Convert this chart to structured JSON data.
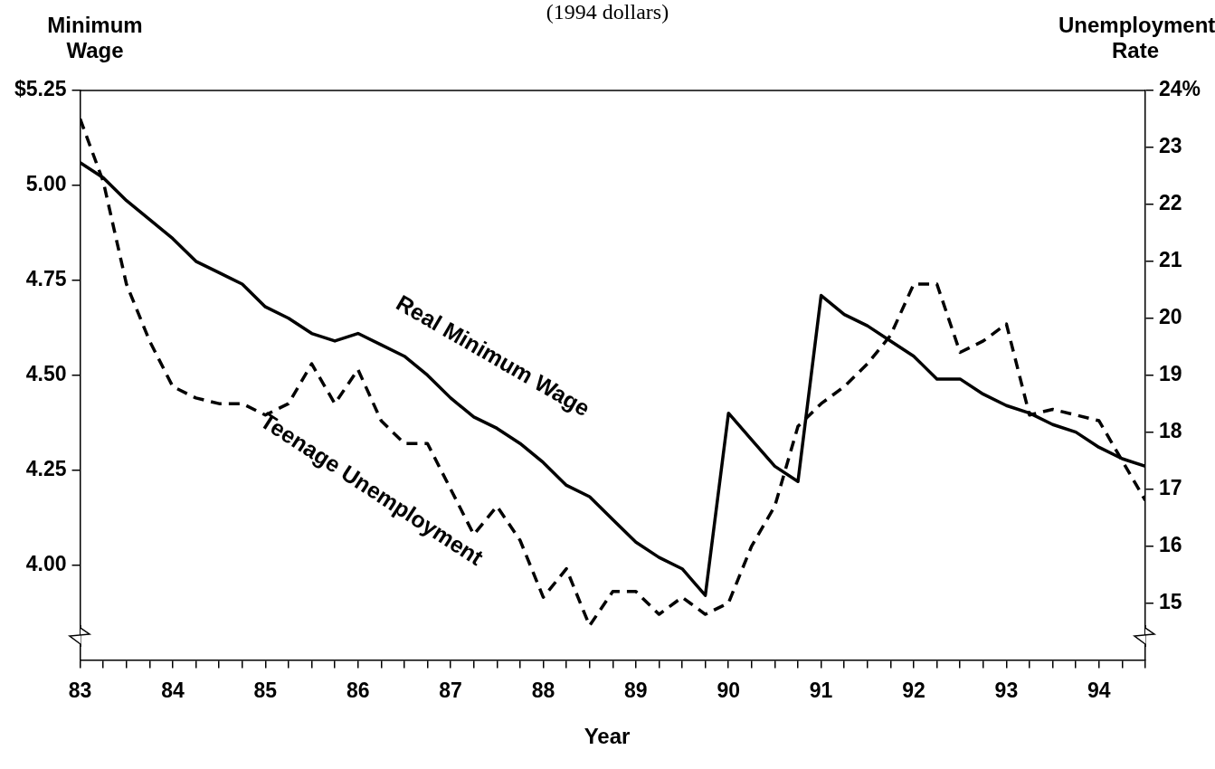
{
  "chart_data": {
    "type": "line",
    "title": "(1994 dollars)",
    "xlabel": "Year",
    "ylabel": "Minimum Wage",
    "y2label": "Unemployment Rate",
    "x": [
      83,
      83.25,
      83.5,
      83.75,
      84,
      84.25,
      84.5,
      84.75,
      85,
      85.25,
      85.5,
      85.75,
      86,
      86.25,
      86.5,
      86.75,
      87,
      87.25,
      87.5,
      87.75,
      88,
      88.25,
      88.5,
      88.75,
      89,
      89.25,
      89.5,
      89.75,
      90,
      90.25,
      90.5,
      90.75,
      91,
      91.25,
      91.5,
      91.75,
      92,
      92.25,
      92.5,
      92.75,
      93,
      93.25,
      93.5,
      93.75,
      94,
      94.25,
      94.5
    ],
    "series": [
      {
        "name": "Real Minimum Wage",
        "color": "#000000",
        "line_style": "solid",
        "values": [
          5.06,
          5.02,
          4.96,
          4.91,
          4.86,
          4.8,
          4.77,
          4.74,
          4.68,
          4.65,
          4.61,
          4.59,
          4.61,
          4.58,
          4.55,
          4.5,
          4.44,
          4.39,
          4.36,
          4.32,
          4.27,
          4.21,
          4.18,
          4.12,
          4.06,
          4.02,
          3.99,
          3.92,
          4.4,
          4.33,
          4.26,
          4.22,
          4.71,
          4.66,
          4.63,
          4.59,
          4.55,
          4.49,
          4.49,
          4.45,
          4.42,
          4.4,
          4.37,
          4.35,
          4.31,
          4.28,
          4.26
        ]
      },
      {
        "name": "Teenage Unemployment",
        "color": "#000000",
        "line_style": "dashed",
        "axis": "y2",
        "values": [
          23.5,
          22.4,
          20.6,
          19.6,
          18.8,
          18.6,
          18.5,
          18.5,
          18.3,
          18.5,
          19.2,
          18.5,
          19.1,
          18.2,
          17.8,
          17.8,
          17.0,
          16.2,
          16.7,
          16.1,
          15.1,
          15.6,
          14.6,
          15.2,
          15.2,
          14.8,
          15.1,
          14.8,
          15.0,
          16.0,
          16.7,
          18.1,
          18.5,
          18.8,
          19.2,
          19.7,
          20.6,
          20.6,
          19.4,
          19.6,
          19.9,
          18.3,
          18.4,
          18.3,
          18.2,
          17.5,
          16.8
        ]
      }
    ],
    "xlim": [
      83,
      94.5
    ],
    "xticks": [
      83,
      {
        "value": 83.25,
        "label": null
      },
      {
        "value": 83.5,
        "label": null
      },
      {
        "value": 83.75,
        "label": null
      },
      84,
      {
        "value": 84.25,
        "label": null
      },
      {
        "value": 84.5,
        "label": null
      },
      {
        "value": 84.75,
        "label": null
      },
      85,
      {
        "value": 85.25,
        "label": null
      },
      {
        "value": 85.5,
        "label": null
      },
      {
        "value": 85.75,
        "label": null
      },
      86,
      {
        "value": 86.25,
        "label": null
      },
      {
        "value": 86.5,
        "label": null
      },
      {
        "value": 86.75,
        "label": null
      },
      87,
      {
        "value": 87.25,
        "label": null
      },
      {
        "value": 87.5,
        "label": null
      },
      {
        "value": 87.75,
        "label": null
      },
      88,
      {
        "value": 88.25,
        "label": null
      },
      {
        "value": 88.5,
        "label": null
      },
      {
        "value": 88.75,
        "label": null
      },
      89,
      {
        "value": 89.25,
        "label": null
      },
      {
        "value": 89.5,
        "label": null
      },
      {
        "value": 89.75,
        "label": null
      },
      90,
      {
        "value": 90.25,
        "label": null
      },
      {
        "value": 90.5,
        "label": null
      },
      {
        "value": 90.75,
        "label": null
      },
      91,
      {
        "value": 91.25,
        "label": null
      },
      {
        "value": 91.5,
        "label": null
      },
      {
        "value": 91.75,
        "label": null
      },
      92,
      {
        "value": 92.25,
        "label": null
      },
      {
        "value": 92.5,
        "label": null
      },
      {
        "value": 92.75,
        "label": null
      },
      93,
      {
        "value": 93.25,
        "label": null
      },
      {
        "value": 93.5,
        "label": null
      },
      {
        "value": 93.75,
        "label": null
      },
      94,
      {
        "value": 94.25,
        "label": null
      },
      {
        "value": 94.5,
        "label": null
      }
    ],
    "ylim": [
      3.75,
      5.25
    ],
    "yticks": [
      {
        "value": 4.0,
        "label": "4.00"
      },
      {
        "value": 4.25,
        "label": "4.25"
      },
      {
        "value": 4.5,
        "label": "4.50"
      },
      {
        "value": 4.75,
        "label": "4.75"
      },
      {
        "value": 5.0,
        "label": "5.00"
      },
      {
        "value": 5.25,
        "label": "$5.25"
      }
    ],
    "y2lim": [
      14,
      24
    ],
    "y2ticks": [
      15,
      16,
      17,
      18,
      19,
      20,
      21,
      22,
      23,
      {
        "value": 24,
        "label": "24%"
      }
    ],
    "grid": false,
    "legend": false,
    "marker": "none"
  }
}
